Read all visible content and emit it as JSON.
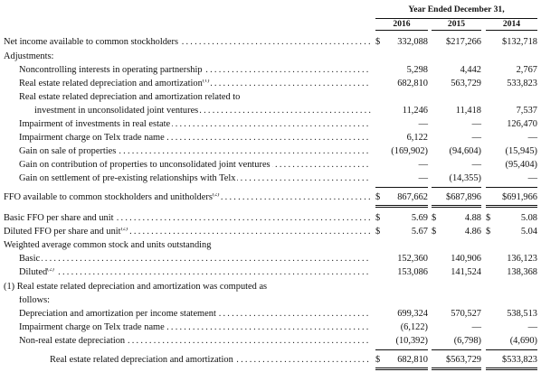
{
  "header": {
    "period": "Year Ended December 31,",
    "years": [
      "2016",
      "2015",
      "2014"
    ]
  },
  "rows": [
    {
      "label": "Net income available to common stockholders",
      "dots": true,
      "indent": 0,
      "dollar": true,
      "values": [
        "332,088",
        "$217,266",
        "$132,718"
      ]
    },
    {
      "label": "Adjustments:",
      "dots": false,
      "indent": 0,
      "values": [
        "",
        "",
        ""
      ]
    },
    {
      "label": "Noncontrolling interests in operating partnership",
      "dots": true,
      "indent": 1,
      "values": [
        "5,298",
        "4,442",
        "2,767"
      ]
    },
    {
      "label": "Real estate related depreciation and amortization",
      "sup": "(1)",
      "dots": true,
      "indent": 1,
      "values": [
        "682,810",
        "563,729",
        "533,823"
      ]
    },
    {
      "label": "Real estate related depreciation and amortization related to",
      "dots": false,
      "indent": 1,
      "values": [
        "",
        "",
        ""
      ]
    },
    {
      "label": "investment in unconsolidated joint ventures",
      "dots": true,
      "indent": 2,
      "values": [
        "11,246",
        "11,418",
        "7,537"
      ]
    },
    {
      "label": "Impairment of investments in real estate",
      "dots": true,
      "indent": 1,
      "values": [
        "—",
        "—",
        "126,470"
      ]
    },
    {
      "label": "Impairment charge on Telx trade name",
      "dots": true,
      "indent": 1,
      "values": [
        "6,122",
        "—",
        "—"
      ]
    },
    {
      "label": "Gain on sale of properties",
      "dots": true,
      "indent": 1,
      "values": [
        "(169,902)",
        "(94,604)",
        "(15,945)"
      ]
    },
    {
      "label": "Gain on contribution of properties to unconsolidated joint ventures",
      "dots": true,
      "indent": 1,
      "values": [
        "—",
        "—",
        "(95,404)"
      ]
    },
    {
      "label": "Gain on settlement of pre-existing relationships with Telx",
      "dots": true,
      "indent": 1,
      "values": [
        "—",
        "(14,355)",
        "—"
      ]
    },
    {
      "label": "FFO available to common stockholders and unitholders",
      "sup": "(2)",
      "dots": true,
      "indent": 0,
      "dollar": true,
      "values": [
        "867,662",
        "$687,896",
        "$691,966"
      ]
    },
    {
      "label": "Basic FFO per share and unit",
      "dots": true,
      "indent": 0,
      "dollar": true,
      "values": [
        "5.69",
        "4.88",
        "5.08"
      ],
      "dollar_all": true
    },
    {
      "label": "Diluted FFO per share and unit",
      "sup": "(2)",
      "dots": true,
      "indent": 0,
      "dollar": true,
      "values": [
        "5.67",
        "4.86",
        "5.04"
      ],
      "dollar_all": true
    },
    {
      "label": "Weighted average common stock and units outstanding",
      "dots": false,
      "indent": 0,
      "values": [
        "",
        "",
        ""
      ]
    },
    {
      "label": "Basic",
      "dots": true,
      "indent": 1,
      "values": [
        "152,360",
        "140,906",
        "136,123"
      ]
    },
    {
      "label": "Diluted",
      "sup": "(2)",
      "dots": true,
      "indent": 1,
      "values": [
        "153,086",
        "141,524",
        "138,368"
      ]
    },
    {
      "label": "(1) Real estate related depreciation and amortization was computed as",
      "dots": false,
      "indent": 0,
      "values": [
        "",
        "",
        ""
      ]
    },
    {
      "label": "follows:",
      "dots": false,
      "indent": 1,
      "values": [
        "",
        "",
        ""
      ]
    },
    {
      "label": "Depreciation and amortization per income statement",
      "dots": true,
      "indent": 1,
      "values": [
        "699,324",
        "570,527",
        "538,513"
      ]
    },
    {
      "label": "Impairment charge on Telx trade name",
      "dots": true,
      "indent": 1,
      "values": [
        "(6,122)",
        "—",
        "—"
      ]
    },
    {
      "label": "Non-real estate depreciation",
      "dots": true,
      "indent": 1,
      "values": [
        "(10,392)",
        "(6,798)",
        "(4,690)"
      ]
    },
    {
      "label": "Real estate related depreciation and amortization",
      "dots": true,
      "indent": 3,
      "dollar": true,
      "values": [
        "682,810",
        "$563,729",
        "$533,823"
      ]
    }
  ],
  "dollar_sign": "$"
}
